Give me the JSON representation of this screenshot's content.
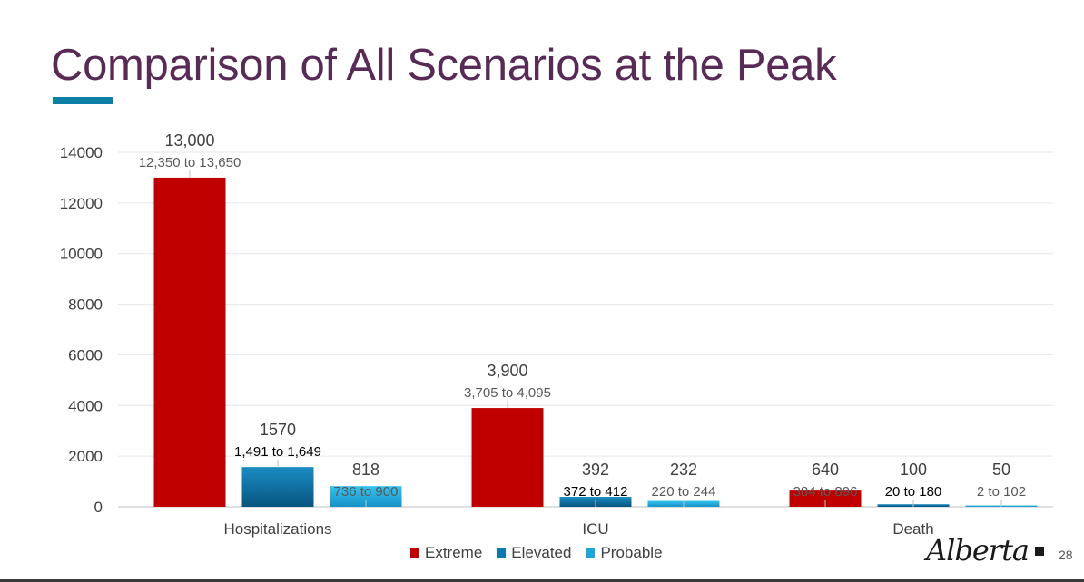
{
  "slide": {
    "title": "Comparison of All Scenarios at the Peak",
    "page_number": "28",
    "logo_text": "Alberta",
    "logo_icon": "alberta-logo-mark",
    "accent_color": "#0b7fa6",
    "title_color": "#582b57"
  },
  "chart_data": {
    "type": "bar",
    "title": "",
    "xlabel": "",
    "ylabel": "",
    "categories": [
      "Hospitalizations",
      "ICU",
      "Death"
    ],
    "ylim": [
      0,
      14000
    ],
    "yticks": [
      "0",
      "2000",
      "4000",
      "6000",
      "8000",
      "10000",
      "12000",
      "14000"
    ],
    "grid": true,
    "legend_position": "bottom-center",
    "series": [
      {
        "name": "Extreme",
        "color": "#c00000",
        "values": [
          13000,
          3900,
          640
        ],
        "value_labels": [
          "13,000",
          "3,900",
          "640"
        ],
        "range_labels": [
          "12,350 to 13,650",
          "3,705 to 4,095",
          "384 to 896"
        ]
      },
      {
        "name": "Elevated",
        "color": "#1178ad",
        "values": [
          1570,
          392,
          100
        ],
        "value_labels": [
          "1570",
          "392",
          "100"
        ],
        "range_labels": [
          "1,491 to 1,649",
          "372 to 412",
          "20 to 180"
        ]
      },
      {
        "name": "Probable",
        "color": "#1aa6d9",
        "values": [
          818,
          232,
          50
        ],
        "value_labels": [
          "818",
          "232",
          "50"
        ],
        "range_labels": [
          "736 to 900",
          "220 to 244",
          "2 to 102"
        ]
      }
    ]
  }
}
